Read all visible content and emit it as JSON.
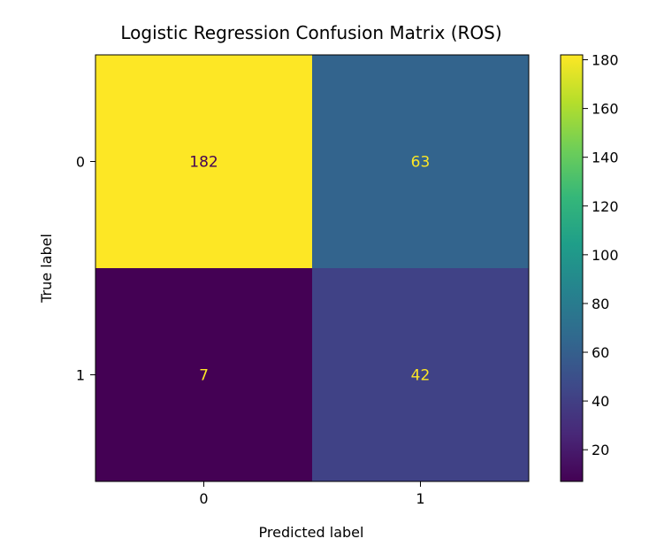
{
  "chart_data": {
    "type": "heatmap",
    "title": "Logistic Regression Confusion Matrix (ROS)",
    "xlabel": "Predicted label",
    "ylabel": "True label",
    "x_categories": [
      "0",
      "1"
    ],
    "y_categories": [
      "0",
      "1"
    ],
    "values": [
      [
        182,
        63
      ],
      [
        7,
        42
      ]
    ],
    "colormap": "viridis",
    "colorbar": {
      "range": [
        7,
        182
      ],
      "ticks": [
        20,
        40,
        60,
        80,
        100,
        120,
        140,
        160,
        180
      ]
    },
    "cell_label_colors": {
      "light_cell": "#440154",
      "dark_cell": "#fde725"
    },
    "grid": false
  }
}
